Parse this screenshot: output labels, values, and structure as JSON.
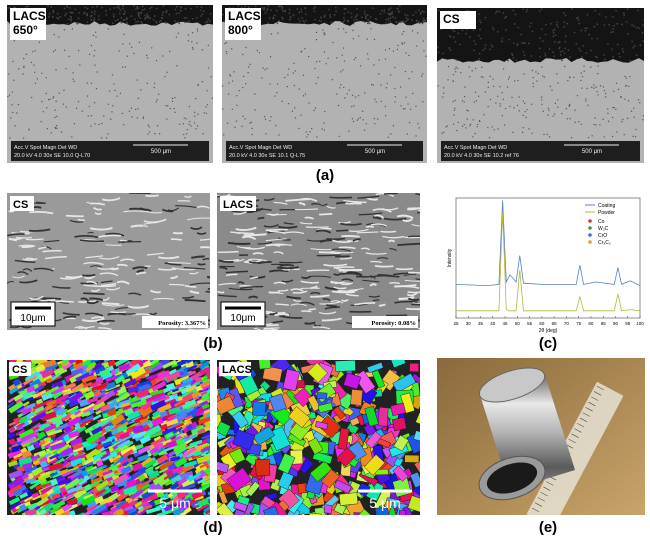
{
  "panel_a": {
    "label": "(a)",
    "images": [
      {
        "title": [
          "LACS",
          "650°"
        ],
        "databar": [
          "Acc.V  Spot Magn    Det  WD",
          "20.0 kV 4.0   30x    SE  10.0  Q-L70"
        ],
        "scale": "500 μm"
      },
      {
        "title": [
          "LACS",
          "800°"
        ],
        "databar": [
          "Acc.V  Spot Magn    Det  WD",
          "20.0 kV 4.0   30x    SE  10.1  Q-L75"
        ],
        "scale": "500 μm"
      },
      {
        "title": [
          "CS"
        ],
        "databar": [
          "Acc.V  Spot Magn    Det  WD",
          "20.0 kV 4.0   30x    SE  10.2  ref 76"
        ],
        "scale": "500 μm"
      }
    ]
  },
  "panel_b": {
    "label": "(b)",
    "images": [
      {
        "title": "CS",
        "scale": "10μm",
        "porosity": "Porosity: 3.367%"
      },
      {
        "title": "LACS",
        "scale": "10μm",
        "porosity": "Porosity: 0.08%"
      }
    ]
  },
  "panel_c": {
    "label": "(c)",
    "chart_data": {
      "type": "line",
      "xlabel": "2θ (deg)",
      "ylabel": "Intensity",
      "xlim": [
        25,
        100
      ],
      "ylim": [
        0,
        100
      ],
      "xticks": [
        25,
        30,
        35,
        40,
        45,
        50,
        55,
        60,
        65,
        70,
        75,
        80,
        85,
        90,
        95,
        100
      ],
      "x": [
        25,
        38,
        42.5,
        44,
        45.5,
        47,
        49.5,
        51,
        52.5,
        60,
        74,
        75.5,
        77,
        82,
        89.5,
        91,
        92.5,
        96,
        100
      ],
      "series": [
        {
          "name": "Coating",
          "color": "#5b7fc4",
          "values": [
            28,
            27,
            28,
            98,
            30,
            36,
            30,
            52,
            29,
            28,
            28,
            44,
            28,
            30,
            28,
            42,
            28,
            31,
            27
          ]
        },
        {
          "name": "Powder",
          "color": "#b5b83a",
          "values": [
            6,
            6,
            6,
            88,
            7,
            6,
            6,
            40,
            6,
            6,
            6,
            18,
            6,
            6,
            6,
            20,
            6,
            7,
            6
          ]
        }
      ],
      "phases": [
        {
          "name": "Co",
          "color": "#d9342b"
        },
        {
          "name": "W₂C",
          "color": "#3e9a4a"
        },
        {
          "name": "CrO",
          "color": "#3b6fd0"
        },
        {
          "name": "Cr₃C₂",
          "color": "#e89a2c"
        }
      ]
    }
  },
  "panel_d": {
    "label": "(d)",
    "images": [
      {
        "title": "CS",
        "scale": "5 μm"
      },
      {
        "title": "LACS",
        "scale": "5 μm"
      }
    ]
  },
  "panel_e": {
    "label": "(e)"
  }
}
